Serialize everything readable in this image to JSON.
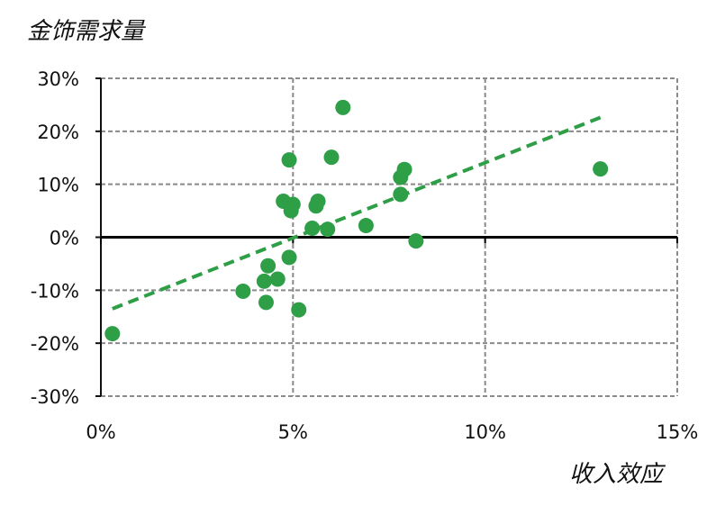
{
  "chart_data": {
    "type": "scatter",
    "ylabel": "金饰需求量",
    "xlabel": "收入效应",
    "xlim": [
      0,
      15
    ],
    "ylim": [
      -30,
      30
    ],
    "x_ticks": [
      0,
      5,
      10,
      15
    ],
    "x_tick_labels": [
      "0%",
      "5%",
      "10%",
      "15%"
    ],
    "y_ticks": [
      30,
      20,
      10,
      0,
      -10,
      -20,
      -30
    ],
    "y_tick_labels": [
      "30%",
      "20%",
      "10%",
      "0%",
      "-10%",
      "-20%",
      "-30%"
    ],
    "grid": true,
    "marker_color": "#2e9e47",
    "trend_color": "#2e9e47",
    "points": [
      {
        "x": 0.3,
        "y": -18.2
      },
      {
        "x": 3.7,
        "y": -10.2
      },
      {
        "x": 4.3,
        "y": -12.3
      },
      {
        "x": 4.25,
        "y": -8.3
      },
      {
        "x": 4.35,
        "y": -5.4
      },
      {
        "x": 4.6,
        "y": -7.9
      },
      {
        "x": 4.9,
        "y": -3.8
      },
      {
        "x": 5.15,
        "y": -13.7
      },
      {
        "x": 4.75,
        "y": 6.8
      },
      {
        "x": 4.9,
        "y": 14.6
      },
      {
        "x": 4.95,
        "y": 5.0
      },
      {
        "x": 5.0,
        "y": 6.2
      },
      {
        "x": 5.5,
        "y": 1.7
      },
      {
        "x": 5.6,
        "y": 5.9
      },
      {
        "x": 5.65,
        "y": 6.8
      },
      {
        "x": 5.9,
        "y": 1.5
      },
      {
        "x": 6.0,
        "y": 15.1
      },
      {
        "x": 6.3,
        "y": 24.5
      },
      {
        "x": 6.9,
        "y": 2.2
      },
      {
        "x": 7.8,
        "y": 11.3
      },
      {
        "x": 7.9,
        "y": 12.8
      },
      {
        "x": 7.8,
        "y": 8.1
      },
      {
        "x": 8.2,
        "y": -0.7
      },
      {
        "x": 13.0,
        "y": 12.9
      }
    ],
    "trendline": {
      "x": [
        0.3,
        13.0
      ],
      "y": [
        -13.5,
        22.6
      ]
    }
  }
}
